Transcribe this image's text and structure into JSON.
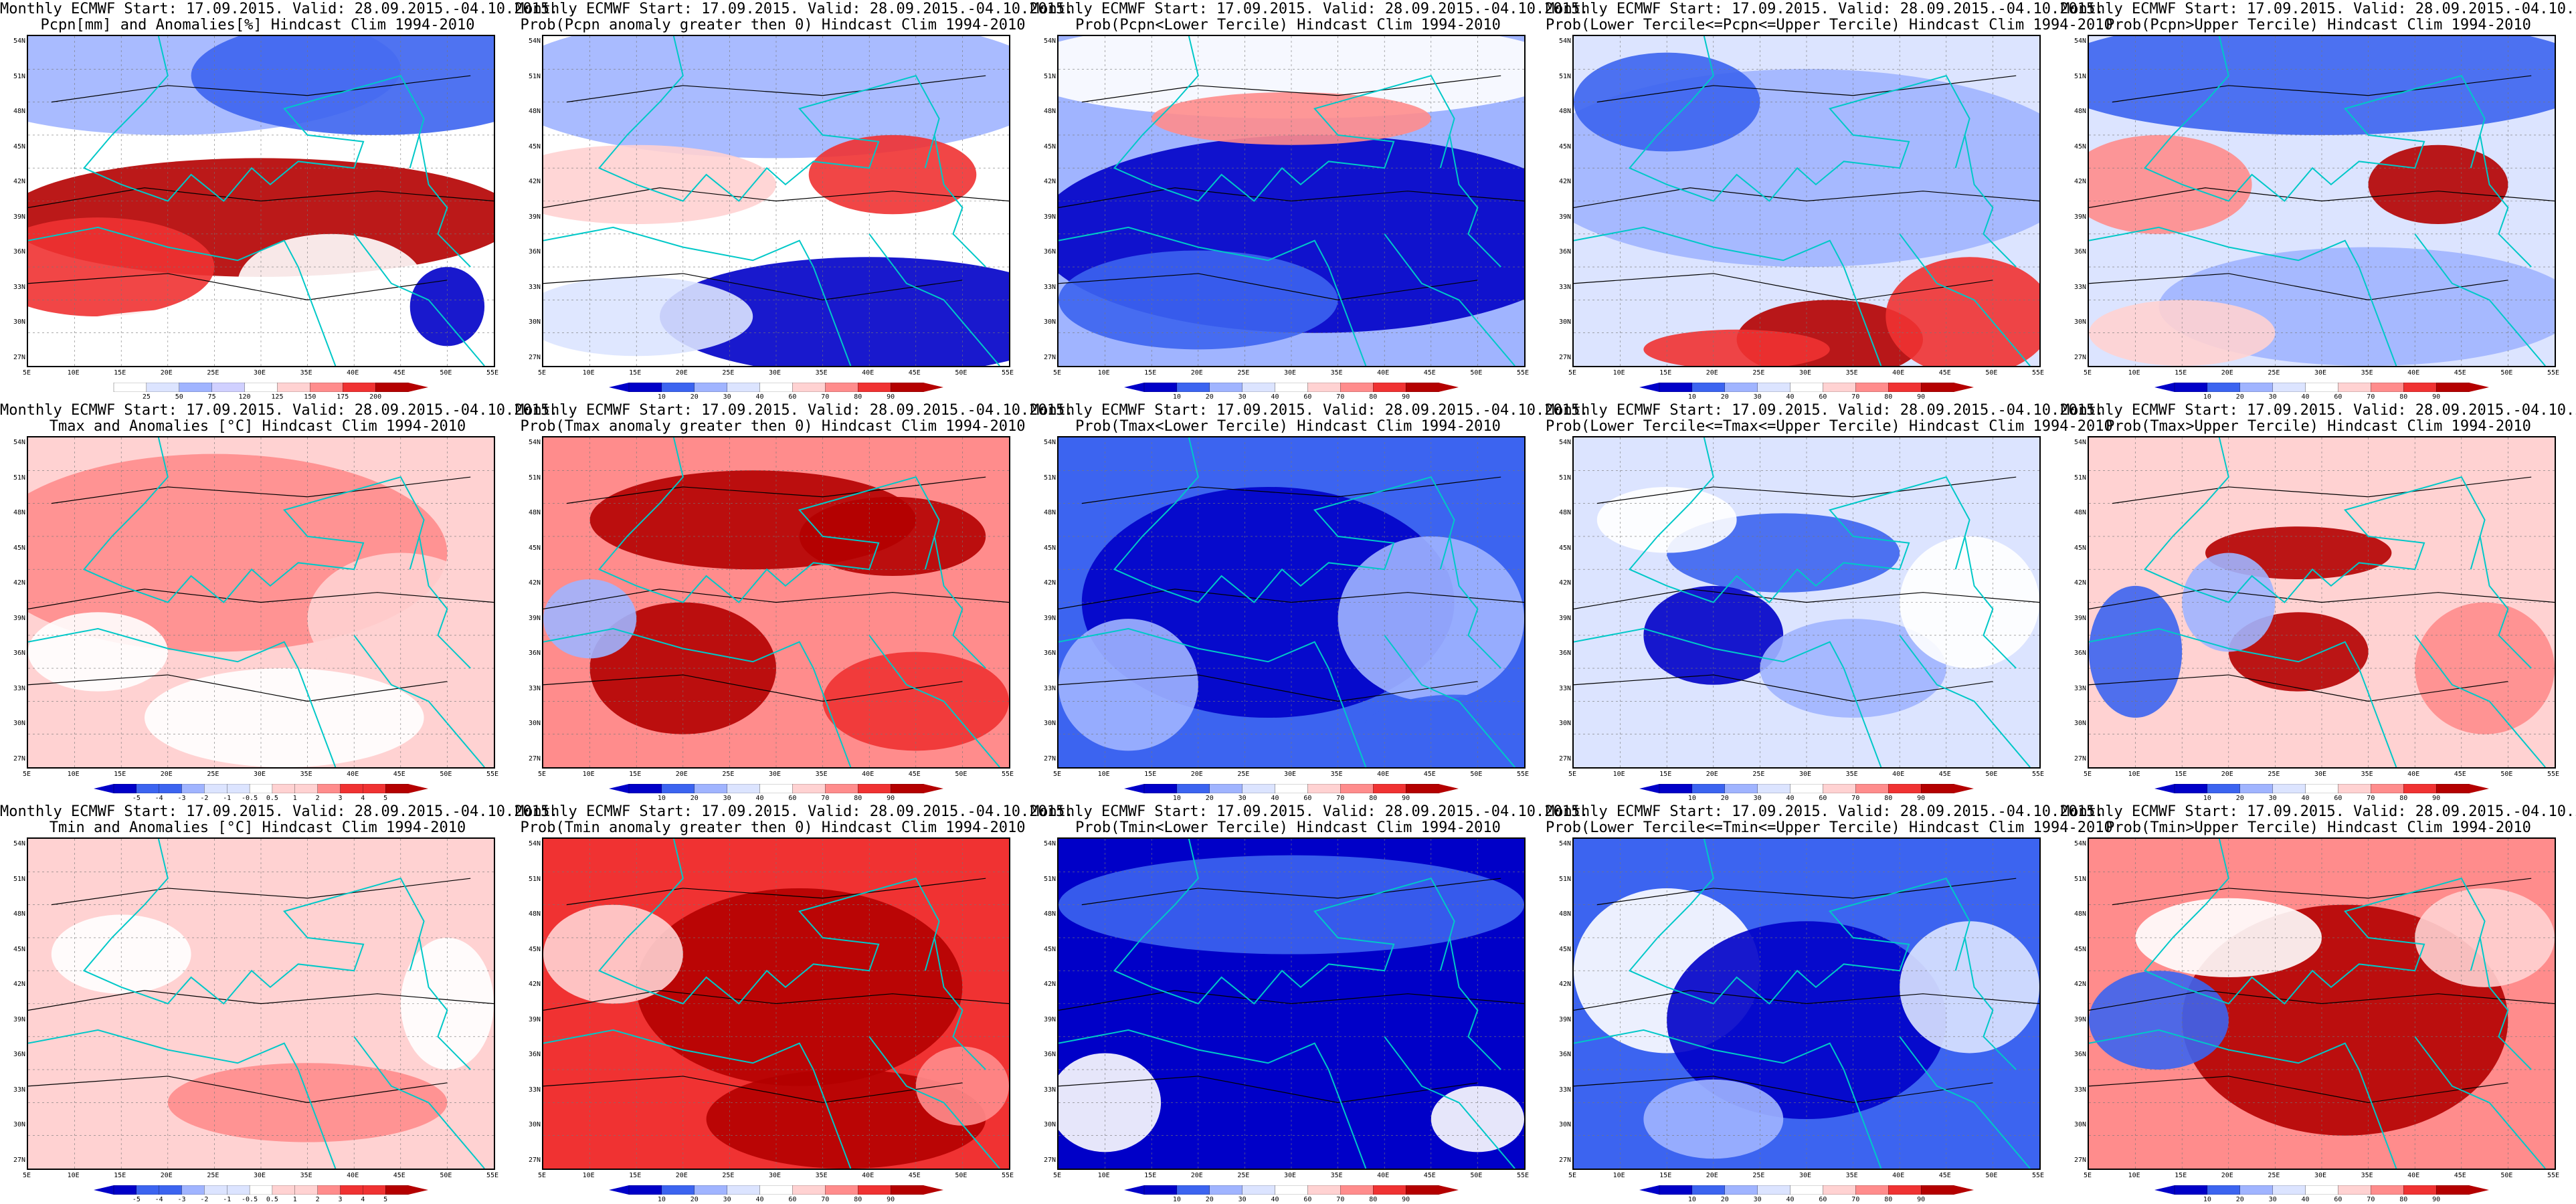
{
  "title_line1": "Monthly ECMWF Start: 17.09.2015. Valid: 28.09.2015.-04.10.2015.",
  "lat_labels": [
    "54N",
    "51N",
    "48N",
    "45N",
    "42N",
    "39N",
    "36N",
    "33N",
    "30N",
    "27N"
  ],
  "lon_labels": [
    "5E",
    "10E",
    "15E",
    "20E",
    "25E",
    "30E",
    "35E",
    "40E",
    "45E",
    "50E",
    "55E"
  ],
  "scales": {
    "pcpn": [
      "25",
      "50",
      "75",
      "120",
      "125",
      "150",
      "175",
      "200"
    ],
    "temp": [
      "-5",
      "-4",
      "-3",
      "-2",
      "-1",
      "-0.5",
      "0.5",
      "1",
      "2",
      "3",
      "4",
      "5"
    ],
    "prob": [
      "10",
      "20",
      "30",
      "40",
      "60",
      "70",
      "80",
      "90"
    ]
  },
  "colors": {
    "dark_blue": "#0000c8",
    "blue": "#3c64f0",
    "light_blue": "#a0b4ff",
    "pale_blue": "#dce4ff",
    "white": "#ffffff",
    "pale_red": "#ffd2d2",
    "light_red": "#ff8c8c",
    "red": "#f03232",
    "dark_red": "#b40000",
    "coast": "#00c8c8",
    "contour": "#000000"
  },
  "panels": [
    {
      "line2": "Pcpn[mm] and Anomalies[%] Hindcast Clim 1994-2010",
      "scale": "pcpn",
      "scheme": "pcpn"
    },
    {
      "line2": "Prob(Pcpn anomaly greater then 0) Hindcast Clim 1994-2010",
      "scale": "prob",
      "scheme": "pcpn_pos"
    },
    {
      "line2": "Prob(Pcpn<Lower Tercile) Hindcast Clim 1994-2010",
      "scale": "prob",
      "scheme": "pcpn_low"
    },
    {
      "line2": "Prob(Lower Tercile<=Pcpn<=Upper Tercile) Hindcast Clim 1994-2010",
      "scale": "prob",
      "scheme": "pcpn_mid"
    },
    {
      "line2": "Prob(Pcpn>Upper Tercile) Hindcast Clim 1994-2010",
      "scale": "prob",
      "scheme": "pcpn_up"
    },
    {
      "line2": "Tmax and Anomalies [°C] Hindcast Clim 1994-2010",
      "scale": "temp",
      "scheme": "tmax"
    },
    {
      "line2": "Prob(Tmax anomaly greater then 0) Hindcast Clim 1994-2010",
      "scale": "prob",
      "scheme": "tmax_pos"
    },
    {
      "line2": "Prob(Tmax<Lower Tercile) Hindcast Clim 1994-2010",
      "scale": "prob",
      "scheme": "tmax_low"
    },
    {
      "line2": "Prob(Lower Tercile<=Tmax<=Upper Tercile) Hindcast Clim 1994-2010",
      "scale": "prob",
      "scheme": "tmax_mid"
    },
    {
      "line2": "Prob(Tmax>Upper Tercile) Hindcast Clim 1994-2010",
      "scale": "prob",
      "scheme": "tmax_up"
    },
    {
      "line2": "Tmin and Anomalies [°C] Hindcast Clim 1994-2010",
      "scale": "temp",
      "scheme": "tmin"
    },
    {
      "line2": "Prob(Tmin anomaly greater then 0) Hindcast Clim 1994-2010",
      "scale": "prob",
      "scheme": "tmin_pos"
    },
    {
      "line2": "Prob(Tmin<Lower Tercile) Hindcast Clim 1994-2010",
      "scale": "prob",
      "scheme": "tmin_low"
    },
    {
      "line2": "Prob(Lower Tercile<=Tmin<=Upper Tercile) Hindcast Clim 1994-2010",
      "scale": "prob",
      "scheme": "tmin_mid"
    },
    {
      "line2": "Prob(Tmin>Upper Tercile) Hindcast Clim 1994-2010",
      "scale": "prob",
      "scheme": "tmin_up"
    }
  ]
}
